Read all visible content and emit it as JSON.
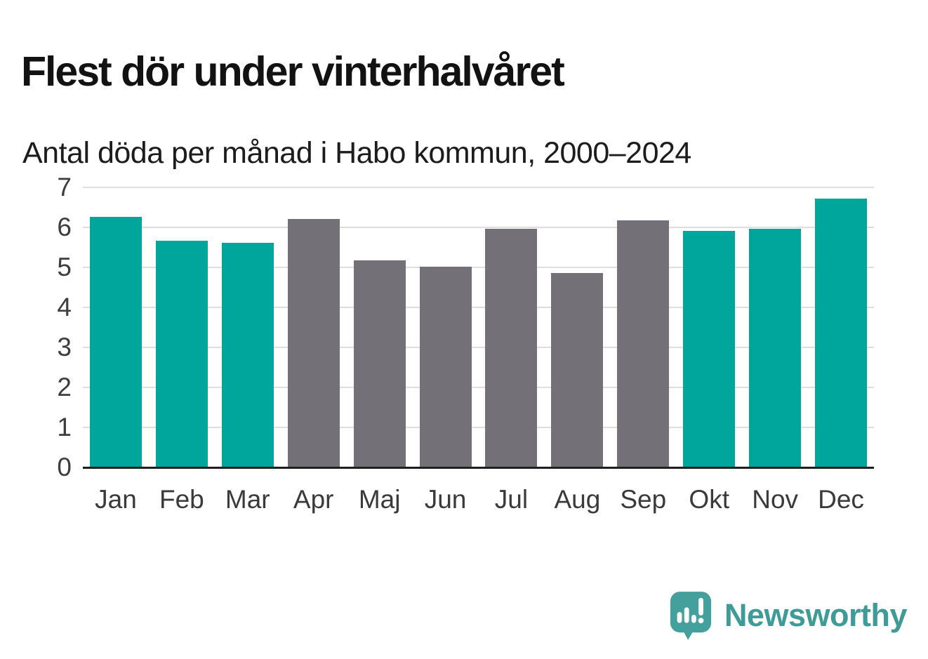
{
  "header": {
    "title": "Flest dör under vinterhalvåret",
    "subtitle": "Antal döda per månad i Habo kommun, 2000–2024"
  },
  "chart_data": {
    "type": "bar",
    "title": "Flest dör under vinterhalvåret",
    "subtitle": "Antal döda per månad i Habo kommun, 2000–2024",
    "categories": [
      "Jan",
      "Feb",
      "Mar",
      "Apr",
      "Maj",
      "Jun",
      "Jul",
      "Aug",
      "Sep",
      "Okt",
      "Nov",
      "Dec"
    ],
    "values": [
      6.25,
      5.65,
      5.6,
      6.2,
      5.15,
      5.0,
      5.95,
      4.85,
      6.15,
      5.9,
      5.95,
      6.7
    ],
    "bar_color_keys": [
      "winter",
      "winter",
      "winter",
      "summer",
      "summer",
      "summer",
      "summer",
      "summer",
      "summer",
      "winter",
      "winter",
      "winter"
    ],
    "colors": {
      "winter": "#00a69c",
      "summer": "#737177"
    },
    "xlabel": "",
    "ylabel": "",
    "ylim": [
      0,
      7
    ],
    "yticks": [
      0,
      1,
      2,
      3,
      4,
      5,
      6,
      7
    ],
    "grid": "horizontal-only",
    "gridline_color": "#dedede",
    "axis_line_color": "#1f1f1f",
    "legend": "none"
  },
  "footer": {
    "brand": "Newsworthy",
    "brand_color": "#3e9b97",
    "logo_icon": "speech-bubble-bar-chart-icon",
    "logo_color": "#44a09c"
  }
}
